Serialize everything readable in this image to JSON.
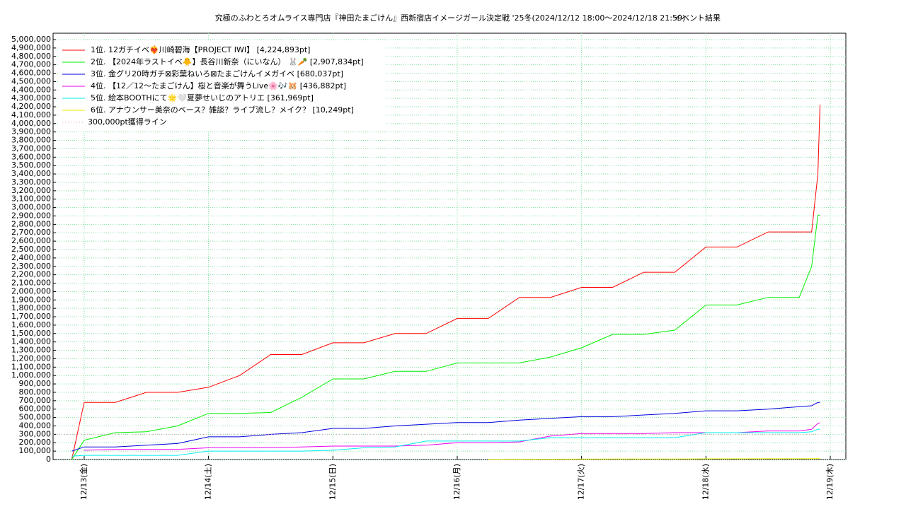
{
  "chart_data": {
    "type": "line",
    "title": "究極のふわとろオムライス専門店『神田たまごけん』西新宿店イメージガール決定戦 '25冬(2024/12/12 18:00～2024/12/18 21:59)",
    "subtitle": "イベント結果",
    "x": [
      -0.25,
      -0.1,
      0,
      0.25,
      0.5,
      0.75,
      1,
      1.25,
      1.5,
      1.75,
      2,
      2.25,
      2.5,
      2.75,
      3,
      3.25,
      3.5,
      3.75,
      4,
      4.25,
      4.5,
      4.75,
      5,
      5.25,
      5.5,
      5.75,
      5.85,
      5.9,
      5.917
    ],
    "xlim": [
      -0.25,
      6.125
    ],
    "xticks": [
      {
        "value": 0,
        "label": "12/13(金)"
      },
      {
        "value": 1,
        "label": "12/14(土)"
      },
      {
        "value": 2,
        "label": "12/15(日)"
      },
      {
        "value": 3,
        "label": "12/16(月)"
      },
      {
        "value": 4,
        "label": "12/17(火)"
      },
      {
        "value": 5,
        "label": "12/18(水)"
      },
      {
        "value": 6,
        "label": "12/19(木)"
      }
    ],
    "ylim": [
      0,
      5000000
    ],
    "yticks": [
      0,
      {
        "value": 100000,
        "label": "100,000"
      },
      {
        "value": 200000,
        "label": "200,000"
      },
      {
        "value": 300000,
        "label": "300,000"
      },
      {
        "value": 400000,
        "label": "400,000"
      },
      {
        "value": 500000,
        "label": "500,000"
      },
      {
        "value": 600000,
        "label": "600,000"
      },
      {
        "value": 700000,
        "label": "700,000"
      },
      {
        "value": 800000,
        "label": "800,000"
      },
      {
        "value": 900000,
        "label": "900,000"
      },
      {
        "value": 1000000,
        "label": "1,000,000"
      },
      {
        "value": 1100000,
        "label": "1,100,000"
      },
      {
        "value": 1200000,
        "label": "1,200,000"
      },
      {
        "value": 1300000,
        "label": "1,300,000"
      },
      {
        "value": 1400000,
        "label": "1,400,000"
      },
      {
        "value": 1500000,
        "label": "1,500,000"
      },
      {
        "value": 1600000,
        "label": "1,600,000"
      },
      {
        "value": 1700000,
        "label": "1,700,000"
      },
      {
        "value": 1800000,
        "label": "1,800,000"
      },
      {
        "value": 1900000,
        "label": "1,900,000"
      },
      {
        "value": 2000000,
        "label": "2,000,000"
      },
      {
        "value": 2100000,
        "label": "2,100,000"
      },
      {
        "value": 2200000,
        "label": "2,200,000"
      },
      {
        "value": 2300000,
        "label": "2,300,000"
      },
      {
        "value": 2400000,
        "label": "2,400,000"
      },
      {
        "value": 2500000,
        "label": "2,500,000"
      },
      {
        "value": 2600000,
        "label": "2,600,000"
      },
      {
        "value": 2700000,
        "label": "2,700,000"
      },
      {
        "value": 2800000,
        "label": "2,800,000"
      },
      {
        "value": 2900000,
        "label": "2,900,000"
      },
      {
        "value": 3000000,
        "label": "3,000,000"
      },
      {
        "value": 3100000,
        "label": "3,100,000"
      },
      {
        "value": 3200000,
        "label": "3,200,000"
      },
      {
        "value": 3300000,
        "label": "3,300,000"
      },
      {
        "value": 3400000,
        "label": "3,400,000"
      },
      {
        "value": 3500000,
        "label": "3,500,000"
      },
      {
        "value": 3600000,
        "label": "3,600,000"
      },
      {
        "value": 3700000,
        "label": "3,700,000"
      },
      {
        "value": 3800000,
        "label": "3,800,000"
      },
      {
        "value": 3900000,
        "label": "3,900,000"
      },
      {
        "value": 4000000,
        "label": "4,000,000"
      },
      {
        "value": 4100000,
        "label": "4,100,000"
      },
      {
        "value": 4200000,
        "label": "4,200,000"
      },
      {
        "value": 4300000,
        "label": "4,300,000"
      },
      {
        "value": 4400000,
        "label": "4,400,000"
      },
      {
        "value": 4500000,
        "label": "4,500,000"
      },
      {
        "value": 4600000,
        "label": "4,600,000"
      },
      {
        "value": 4700000,
        "label": "4,700,000"
      },
      {
        "value": 4800000,
        "label": "4,800,000"
      },
      {
        "value": 4900000,
        "label": "4,900,000"
      },
      {
        "value": 5000000,
        "label": "5,000,000"
      }
    ],
    "grid": true,
    "legend": "upper-left",
    "series": [
      {
        "name": "1位. 12ガチイベ❤️‍🔥川崎碧海【PROJECT IWI】 [4,224,893pt]",
        "color": "#ff0000",
        "values": [
          null,
          0,
          680000,
          680000,
          800000,
          800000,
          860000,
          1000000,
          1250000,
          1250000,
          1390000,
          1390000,
          1500000,
          1500000,
          1680000,
          1680000,
          1930000,
          1930000,
          2050000,
          2050000,
          2230000,
          2230000,
          2530000,
          2530000,
          2710000,
          2710000,
          2710000,
          3400000,
          4224893
        ]
      },
      {
        "name": "2位. 【2024年ラストイベ🐥】長谷川新奈（にいなん） 🐰🥕 [2,907,834pt]",
        "color": "#00ee00",
        "values": [
          null,
          0,
          230000,
          320000,
          330000,
          400000,
          550000,
          550000,
          560000,
          740000,
          960000,
          960000,
          1050000,
          1050000,
          1150000,
          1150000,
          1150000,
          1220000,
          1330000,
          1490000,
          1490000,
          1540000,
          1840000,
          1840000,
          1930000,
          1930000,
          2300000,
          2910000,
          2907834
        ]
      },
      {
        "name": "3位. 金グリ20時ガチ⊠彩葉ねいろ⊠たまごけんイメガイベ [680,037pt]",
        "color": "#0000dd",
        "values": [
          null,
          100000,
          150000,
          150000,
          170000,
          190000,
          270000,
          270000,
          300000,
          320000,
          370000,
          370000,
          400000,
          420000,
          440000,
          440000,
          470000,
          490000,
          510000,
          510000,
          530000,
          550000,
          580000,
          580000,
          600000,
          630000,
          640000,
          680000,
          680037
        ]
      },
      {
        "name": "4位. 【12／12〜たまごけん】桜と音楽が舞うLive🌸🎶🐹 [436,882pt]",
        "color": "#ee00ee",
        "values": [
          null,
          null,
          110000,
          120000,
          120000,
          120000,
          140000,
          140000,
          140000,
          150000,
          160000,
          160000,
          160000,
          170000,
          200000,
          200000,
          210000,
          280000,
          310000,
          310000,
          310000,
          320000,
          320000,
          320000,
          340000,
          340000,
          360000,
          430000,
          436882
        ]
      },
      {
        "name": "5位. 絵本BOOTHにて🌟🤍夏夢せいじのアトリエ [361,969pt]",
        "color": "#00eeee",
        "values": [
          null,
          40000,
          50000,
          50000,
          50000,
          50000,
          100000,
          100000,
          100000,
          100000,
          110000,
          140000,
          150000,
          220000,
          220000,
          220000,
          220000,
          260000,
          260000,
          260000,
          260000,
          260000,
          320000,
          320000,
          320000,
          320000,
          330000,
          360000,
          361969
        ]
      },
      {
        "name": "6位. アナウンサー美奈のベース？雑談？ライブ流し？メイク？ [10,249pt]",
        "color": "#eeee00",
        "values": [
          null,
          null,
          null,
          null,
          null,
          null,
          null,
          null,
          null,
          null,
          null,
          null,
          null,
          null,
          null,
          2000,
          3000,
          4000,
          5000,
          5500,
          6000,
          7000,
          8000,
          8500,
          9000,
          9500,
          10000,
          10200,
          10249
        ]
      },
      {
        "name": "300,000pt獲得ライン",
        "color": "#e8a0b0",
        "dashed": true,
        "values": [
          300000,
          300000,
          300000,
          300000,
          300000,
          300000,
          300000,
          300000,
          300000,
          300000,
          300000,
          300000,
          300000,
          300000,
          300000,
          300000,
          300000,
          300000,
          300000,
          300000,
          300000,
          300000,
          300000,
          300000,
          300000,
          300000,
          300000,
          300000,
          300000
        ]
      }
    ]
  }
}
